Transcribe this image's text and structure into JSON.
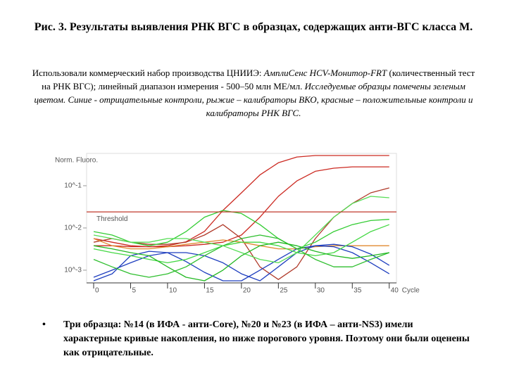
{
  "header": {
    "title": "Рис. 3. Результаты выявления РНК ВГС в образцах, содержащих анти-ВГС класса М."
  },
  "description": [
    "Использовали коммерческий набор производства ЦНИИЭ: ",
    "АмплиСенс HCV-Монитор-FRT",
    " (количественный тест на РНК ВГС); линейный диапазон измерения - 500–50 млн МЕ/мл. ",
    "Исследуемые образцы помечены зеленым цветом. Синие - отрицательные контроли, рыжие – калибраторы ВКО, красные – положительные контроли и калибраторы РНК ВГС."
  ],
  "chart_data": {
    "type": "line",
    "y_label": "Norm. Fluoro.",
    "x_label": "Cycle",
    "yscale": "log",
    "ylim": [
      0.0005,
      0.5
    ],
    "yticks": [
      {
        "value": 0.1,
        "label": "10^-1"
      },
      {
        "value": 0.01,
        "label": "10^-2"
      },
      {
        "value": 0.001,
        "label": "10^-3"
      }
    ],
    "xlim": [
      0,
      40.5
    ],
    "xticks": [
      0,
      5,
      10,
      15,
      20,
      25,
      30,
      35,
      40
    ],
    "threshold": {
      "label": "Threshold",
      "value": 0.024,
      "color": "#c0392b"
    },
    "x": [
      0,
      2.5,
      5,
      7.5,
      10,
      12.5,
      15,
      17.5,
      20,
      22.5,
      25,
      27.5,
      30,
      32.5,
      35,
      37.5,
      40
    ],
    "series": [
      {
        "color": "#cc2a22",
        "values": [
          0.0038,
          0.0038,
          0.0036,
          0.0036,
          0.0038,
          0.0047,
          0.0083,
          0.026,
          0.068,
          0.18,
          0.35,
          0.48,
          0.52,
          0.52,
          0.52,
          0.52,
          0.52
        ]
      },
      {
        "color": "#cc2a22",
        "values": [
          0.0056,
          0.0046,
          0.0038,
          0.0036,
          0.0036,
          0.0038,
          0.0041,
          0.0046,
          0.0068,
          0.018,
          0.056,
          0.13,
          0.22,
          0.26,
          0.28,
          0.28,
          0.28
        ]
      },
      {
        "color": "#b03a2a",
        "values": [
          0.0046,
          0.0056,
          0.0046,
          0.0041,
          0.0041,
          0.0046,
          0.0068,
          0.012,
          0.0056,
          0.0012,
          0.0006,
          0.0012,
          0.0056,
          0.018,
          0.038,
          0.068,
          0.089
        ]
      },
      {
        "color": "#e08a30",
        "values": [
          0.0056,
          0.0038,
          0.0032,
          0.0032,
          0.0036,
          0.0041,
          0.0046,
          0.0052,
          0.0046,
          0.0038,
          0.0032,
          0.0032,
          0.0036,
          0.0038,
          0.0038,
          0.0038,
          0.0038
        ]
      },
      {
        "color": "#1f3fbf",
        "values": [
          0.00056,
          0.00082,
          0.0022,
          0.0028,
          0.0026,
          0.0016,
          0.00089,
          0.00056,
          0.00056,
          0.001,
          0.0018,
          0.0032,
          0.0038,
          0.0036,
          0.0026,
          0.0015,
          0.00082
        ]
      },
      {
        "color": "#1f3fbf",
        "values": [
          0.00068,
          0.001,
          0.0015,
          0.0022,
          0.0026,
          0.0026,
          0.0022,
          0.0015,
          0.00082,
          0.00056,
          0.0012,
          0.0026,
          0.0038,
          0.0041,
          0.0036,
          0.0024,
          0.0013
        ]
      },
      {
        "color": "#33cc33",
        "values": [
          0.0082,
          0.0068,
          0.0046,
          0.0038,
          0.0046,
          0.0082,
          0.018,
          0.026,
          0.022,
          0.012,
          0.0056,
          0.0032,
          0.0046,
          0.0082,
          0.012,
          0.015,
          0.016
        ]
      },
      {
        "color": "#44d844",
        "values": [
          0.0032,
          0.0026,
          0.0022,
          0.0018,
          0.0015,
          0.0018,
          0.0026,
          0.0038,
          0.0046,
          0.0046,
          0.0038,
          0.0026,
          0.0022,
          0.0026,
          0.0046,
          0.0082,
          0.012
        ]
      },
      {
        "color": "#2fbf2f",
        "values": [
          0.0018,
          0.0012,
          0.00082,
          0.00068,
          0.00082,
          0.0012,
          0.0022,
          0.0038,
          0.0056,
          0.0068,
          0.0056,
          0.0032,
          0.0018,
          0.0012,
          0.0012,
          0.0018,
          0.0026
        ]
      },
      {
        "color": "#55dd55",
        "values": [
          0.0068,
          0.0056,
          0.0046,
          0.0046,
          0.0056,
          0.0056,
          0.0046,
          0.0038,
          0.0026,
          0.0018,
          0.0015,
          0.0026,
          0.0068,
          0.018,
          0.038,
          0.056,
          0.052
        ]
      },
      {
        "color": "#22b822",
        "values": [
          0.0038,
          0.0032,
          0.0026,
          0.0022,
          0.0012,
          0.00068,
          0.00056,
          0.001,
          0.0022,
          0.0038,
          0.0046,
          0.0038,
          0.0028,
          0.0022,
          0.0019,
          0.0022,
          0.0026
        ]
      }
    ]
  },
  "bullets": [
    "Три образца: №14 (в ИФА - анти-Core),  №20 и №23 (в ИФА – анти-NS3) имели характерные кривые накопления, но ниже порогового уровня. Поэтому они были оценены как отрицательные."
  ]
}
